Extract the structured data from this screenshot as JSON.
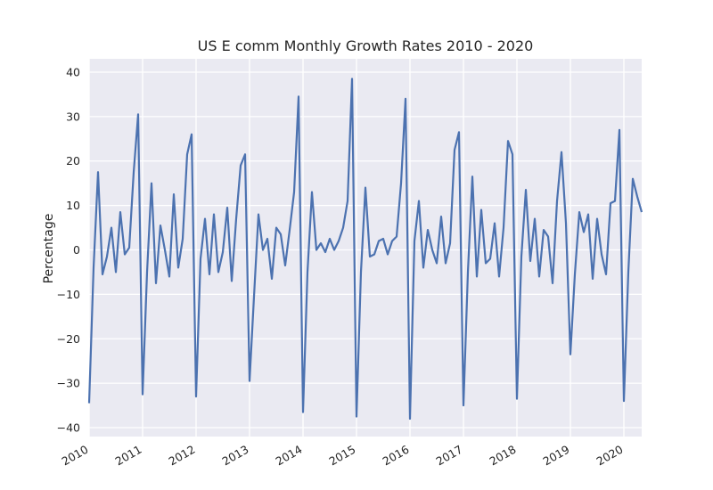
{
  "chart_data": {
    "type": "line",
    "title": "US E comm Monthly Growth Rates 2010 - 2020",
    "xlabel": "",
    "ylabel": "Percentage",
    "x_start": "2010-01",
    "x_frequency": "monthly",
    "xlim": [
      "2010-01",
      "2020-05"
    ],
    "ylim": [
      -42,
      43
    ],
    "x_tick_labels": [
      "2010",
      "2011",
      "2012",
      "2013",
      "2014",
      "2015",
      "2016",
      "2017",
      "2018",
      "2019",
      "2020"
    ],
    "y_tick_labels": [
      "40",
      "30",
      "20",
      "10",
      "0",
      "−10",
      "−20",
      "−30",
      "−40"
    ],
    "y_ticks": [
      40,
      30,
      20,
      10,
      0,
      -10,
      -20,
      -30,
      -40
    ],
    "grid": true,
    "background": "#eaeaf2",
    "series": [
      {
        "color": "#4c72b0",
        "values": [
          -34.5,
          -4.0,
          17.5,
          -5.5,
          -1.5,
          5.0,
          -5.0,
          8.5,
          -1.0,
          0.5,
          17.5,
          30.5,
          -32.5,
          -5.0,
          15.0,
          -7.5,
          5.5,
          0.0,
          -6.0,
          12.5,
          -4.0,
          2.5,
          21.5,
          26.0,
          -33.0,
          -2.0,
          7.0,
          -5.5,
          8.0,
          -5.0,
          -0.5,
          9.5,
          -7.0,
          7.0,
          19.0,
          21.5,
          -29.5,
          -10.5,
          8.0,
          0.0,
          2.5,
          -6.5,
          5.0,
          3.5,
          -3.5,
          4.5,
          13.0,
          34.5,
          -36.5,
          -5.0,
          13.0,
          0.0,
          1.5,
          -0.5,
          2.5,
          0.0,
          2.0,
          5.0,
          11.0,
          38.5,
          -37.5,
          -5.0,
          14.0,
          -1.5,
          -1.0,
          2.0,
          2.5,
          -1.0,
          2.0,
          3.0,
          15.0,
          34.0,
          -38.0,
          2.0,
          11.0,
          -4.0,
          4.5,
          0.0,
          -3.0,
          7.5,
          -3.0,
          1.5,
          22.5,
          26.5,
          -35.0,
          -5.0,
          16.5,
          -6.0,
          9.0,
          -3.0,
          -2.0,
          6.0,
          -6.0,
          5.0,
          24.5,
          21.5,
          -33.5,
          -1.5,
          13.5,
          -2.5,
          7.0,
          -6.0,
          4.5,
          3.0,
          -7.5,
          11.0,
          22.0,
          6.0,
          -23.5,
          -5.5,
          8.5,
          4.0,
          8.0,
          -6.5,
          7.0,
          -1.0,
          -5.5,
          10.5,
          11.0,
          27.0,
          -34.0,
          -5.0,
          16.0,
          12.0,
          8.5
        ]
      }
    ]
  }
}
